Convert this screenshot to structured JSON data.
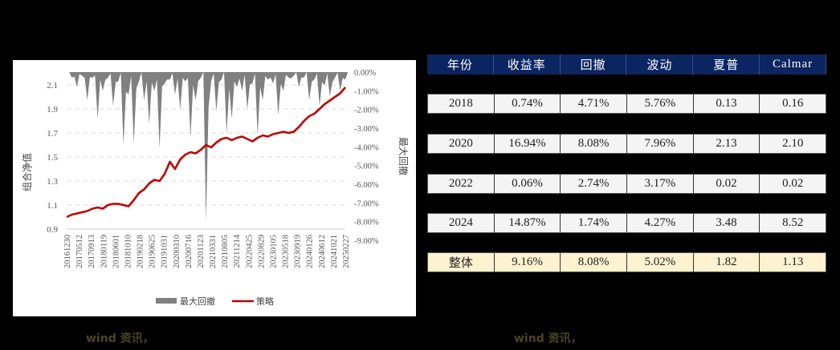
{
  "chart_data": {
    "type": "line",
    "title": "",
    "xlabel": "",
    "ylabel": "组合净值",
    "y2label": "最大回撤",
    "ylim": [
      0.9,
      2.1
    ],
    "y2lim": [
      -9.0,
      0.0
    ],
    "yticks": [
      "2.1",
      "1.9",
      "1.7",
      "1.5",
      "1.3",
      "1.1",
      "0.9"
    ],
    "y2ticks": [
      "0.00%",
      "-1.00%",
      "-2.00%",
      "-3.00%",
      "-4.00%",
      "-5.00%",
      "-6.00%",
      "-7.00%",
      "-8.00%",
      "-9.00%"
    ],
    "xticks": [
      "20161230",
      "20170512",
      "20170913",
      "20180119",
      "20180601",
      "20181010",
      "20190218",
      "20190625",
      "20191031",
      "20200310",
      "20200716",
      "20201123",
      "20210331",
      "20210805",
      "20211214",
      "20220425",
      "20220829",
      "20230105",
      "20230518",
      "20230919",
      "20240126",
      "20240612",
      "20241021",
      "20250227"
    ],
    "grid": "dashed horizontal",
    "legend_position": "bottom",
    "series": [
      {
        "name": "最大回撤",
        "type": "area",
        "axis": "right",
        "color": "#808080",
        "values": [
          0.0,
          -0.3,
          -0.8,
          -0.2,
          -1.5,
          -0.3,
          -2.5,
          -1.0,
          -0.3,
          -1.8,
          -0.5,
          -3.9,
          -1.2,
          -3.8,
          -0.5,
          -1.5,
          -2.8,
          -1.0,
          -4.1,
          -0.6,
          -0.4,
          -1.2,
          -2.0,
          -0.5,
          -3.5,
          -1.5,
          -0.3,
          -8.0,
          -0.5,
          -2.1,
          -0.4,
          -3.3,
          -2.5,
          -0.8,
          -1.0,
          -2.0,
          -0.6,
          -3.4,
          -1.5,
          -0.4,
          -0.6,
          -2.3,
          -1.0,
          -0.3,
          -0.2,
          -0.8,
          -0.3,
          -1.5,
          -0.4,
          -1.8,
          -0.7,
          -1.3,
          -0.3,
          -1.0,
          -0.4
        ]
      },
      {
        "name": "策略",
        "type": "line",
        "axis": "left",
        "color": "#c00000",
        "values": [
          1.0,
          1.02,
          1.03,
          1.04,
          1.05,
          1.07,
          1.08,
          1.07,
          1.1,
          1.11,
          1.11,
          1.1,
          1.09,
          1.14,
          1.2,
          1.23,
          1.28,
          1.31,
          1.3,
          1.36,
          1.46,
          1.4,
          1.48,
          1.52,
          1.54,
          1.53,
          1.56,
          1.6,
          1.58,
          1.62,
          1.65,
          1.66,
          1.64,
          1.66,
          1.67,
          1.65,
          1.63,
          1.66,
          1.68,
          1.67,
          1.69,
          1.7,
          1.71,
          1.7,
          1.71,
          1.75,
          1.8,
          1.84,
          1.86,
          1.9,
          1.94,
          1.97,
          2.0,
          2.03,
          2.08
        ]
      }
    ]
  },
  "chart": {
    "y_axis_label": "组合净值",
    "y2_axis_label": "最大回撤",
    "legend": [
      {
        "label": "最大回撤",
        "color": "#808080"
      },
      {
        "label": "策略",
        "color": "#c00000"
      }
    ]
  },
  "table": {
    "headers": [
      "年份",
      "收益率",
      "回撤",
      "波动",
      "夏普",
      "Calmar"
    ],
    "rows": [
      [
        "2018",
        "0.74%",
        "4.71%",
        "5.76%",
        "0.13",
        "0.16"
      ],
      [
        "2020",
        "16.94%",
        "8.08%",
        "7.96%",
        "2.13",
        "2.10"
      ],
      [
        "2022",
        "0.06%",
        "2.74%",
        "3.17%",
        "0.02",
        "0.02"
      ],
      [
        "2024",
        "14.87%",
        "1.74%",
        "4.27%",
        "3.48",
        "8.52"
      ]
    ],
    "total_row": [
      "整体",
      "9.16%",
      "8.08%",
      "5.02%",
      "1.82",
      "1.13"
    ],
    "header_color": "#0b2561",
    "total_row_color": "#fff2cf"
  },
  "sources": {
    "left": "wind 资讯，",
    "right": "wind 资讯，"
  }
}
